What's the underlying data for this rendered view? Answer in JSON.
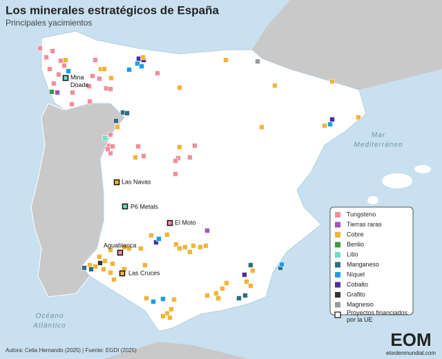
{
  "header": {
    "title": "Los minerales estratégicos de España",
    "subtitle": "Principales yacimientos"
  },
  "legend": {
    "items": [
      {
        "name": "Tungsteno",
        "color": "#f28e9b"
      },
      {
        "name": "Tierras raras",
        "color": "#a552c4"
      },
      {
        "name": "Cobre",
        "color": "#f2b43a"
      },
      {
        "name": "Berilio",
        "color": "#3a9a3e"
      },
      {
        "name": "Litio",
        "color": "#6fdcc6"
      },
      {
        "name": "Manganeso",
        "color": "#2e6f82"
      },
      {
        "name": "Níquel",
        "color": "#1f9fe0"
      },
      {
        "name": "Cobalto",
        "color": "#4a2fa0"
      },
      {
        "name": "Grafito",
        "color": "#333333"
      },
      {
        "name": "Magnesio",
        "color": "#9a9a9a"
      },
      {
        "name": "Proyectos financiados por la UE",
        "color": "#ffffff"
      }
    ]
  },
  "sites": [
    "Mina Doade",
    "Las Navas",
    "P6 Metals",
    "El Moto",
    "Aguablanca",
    "Las Cruces"
  ],
  "seas": {
    "mediterranean": [
      "Mar",
      "Mediterráneo"
    ],
    "atlantic": [
      "Océano",
      "Atlántico"
    ]
  },
  "footer": {
    "source": "Autora: Celia Hernando (2025) | Fuente: EGDI  (2025)",
    "logo": "EOM",
    "website": "elordenmundial.com"
  }
}
